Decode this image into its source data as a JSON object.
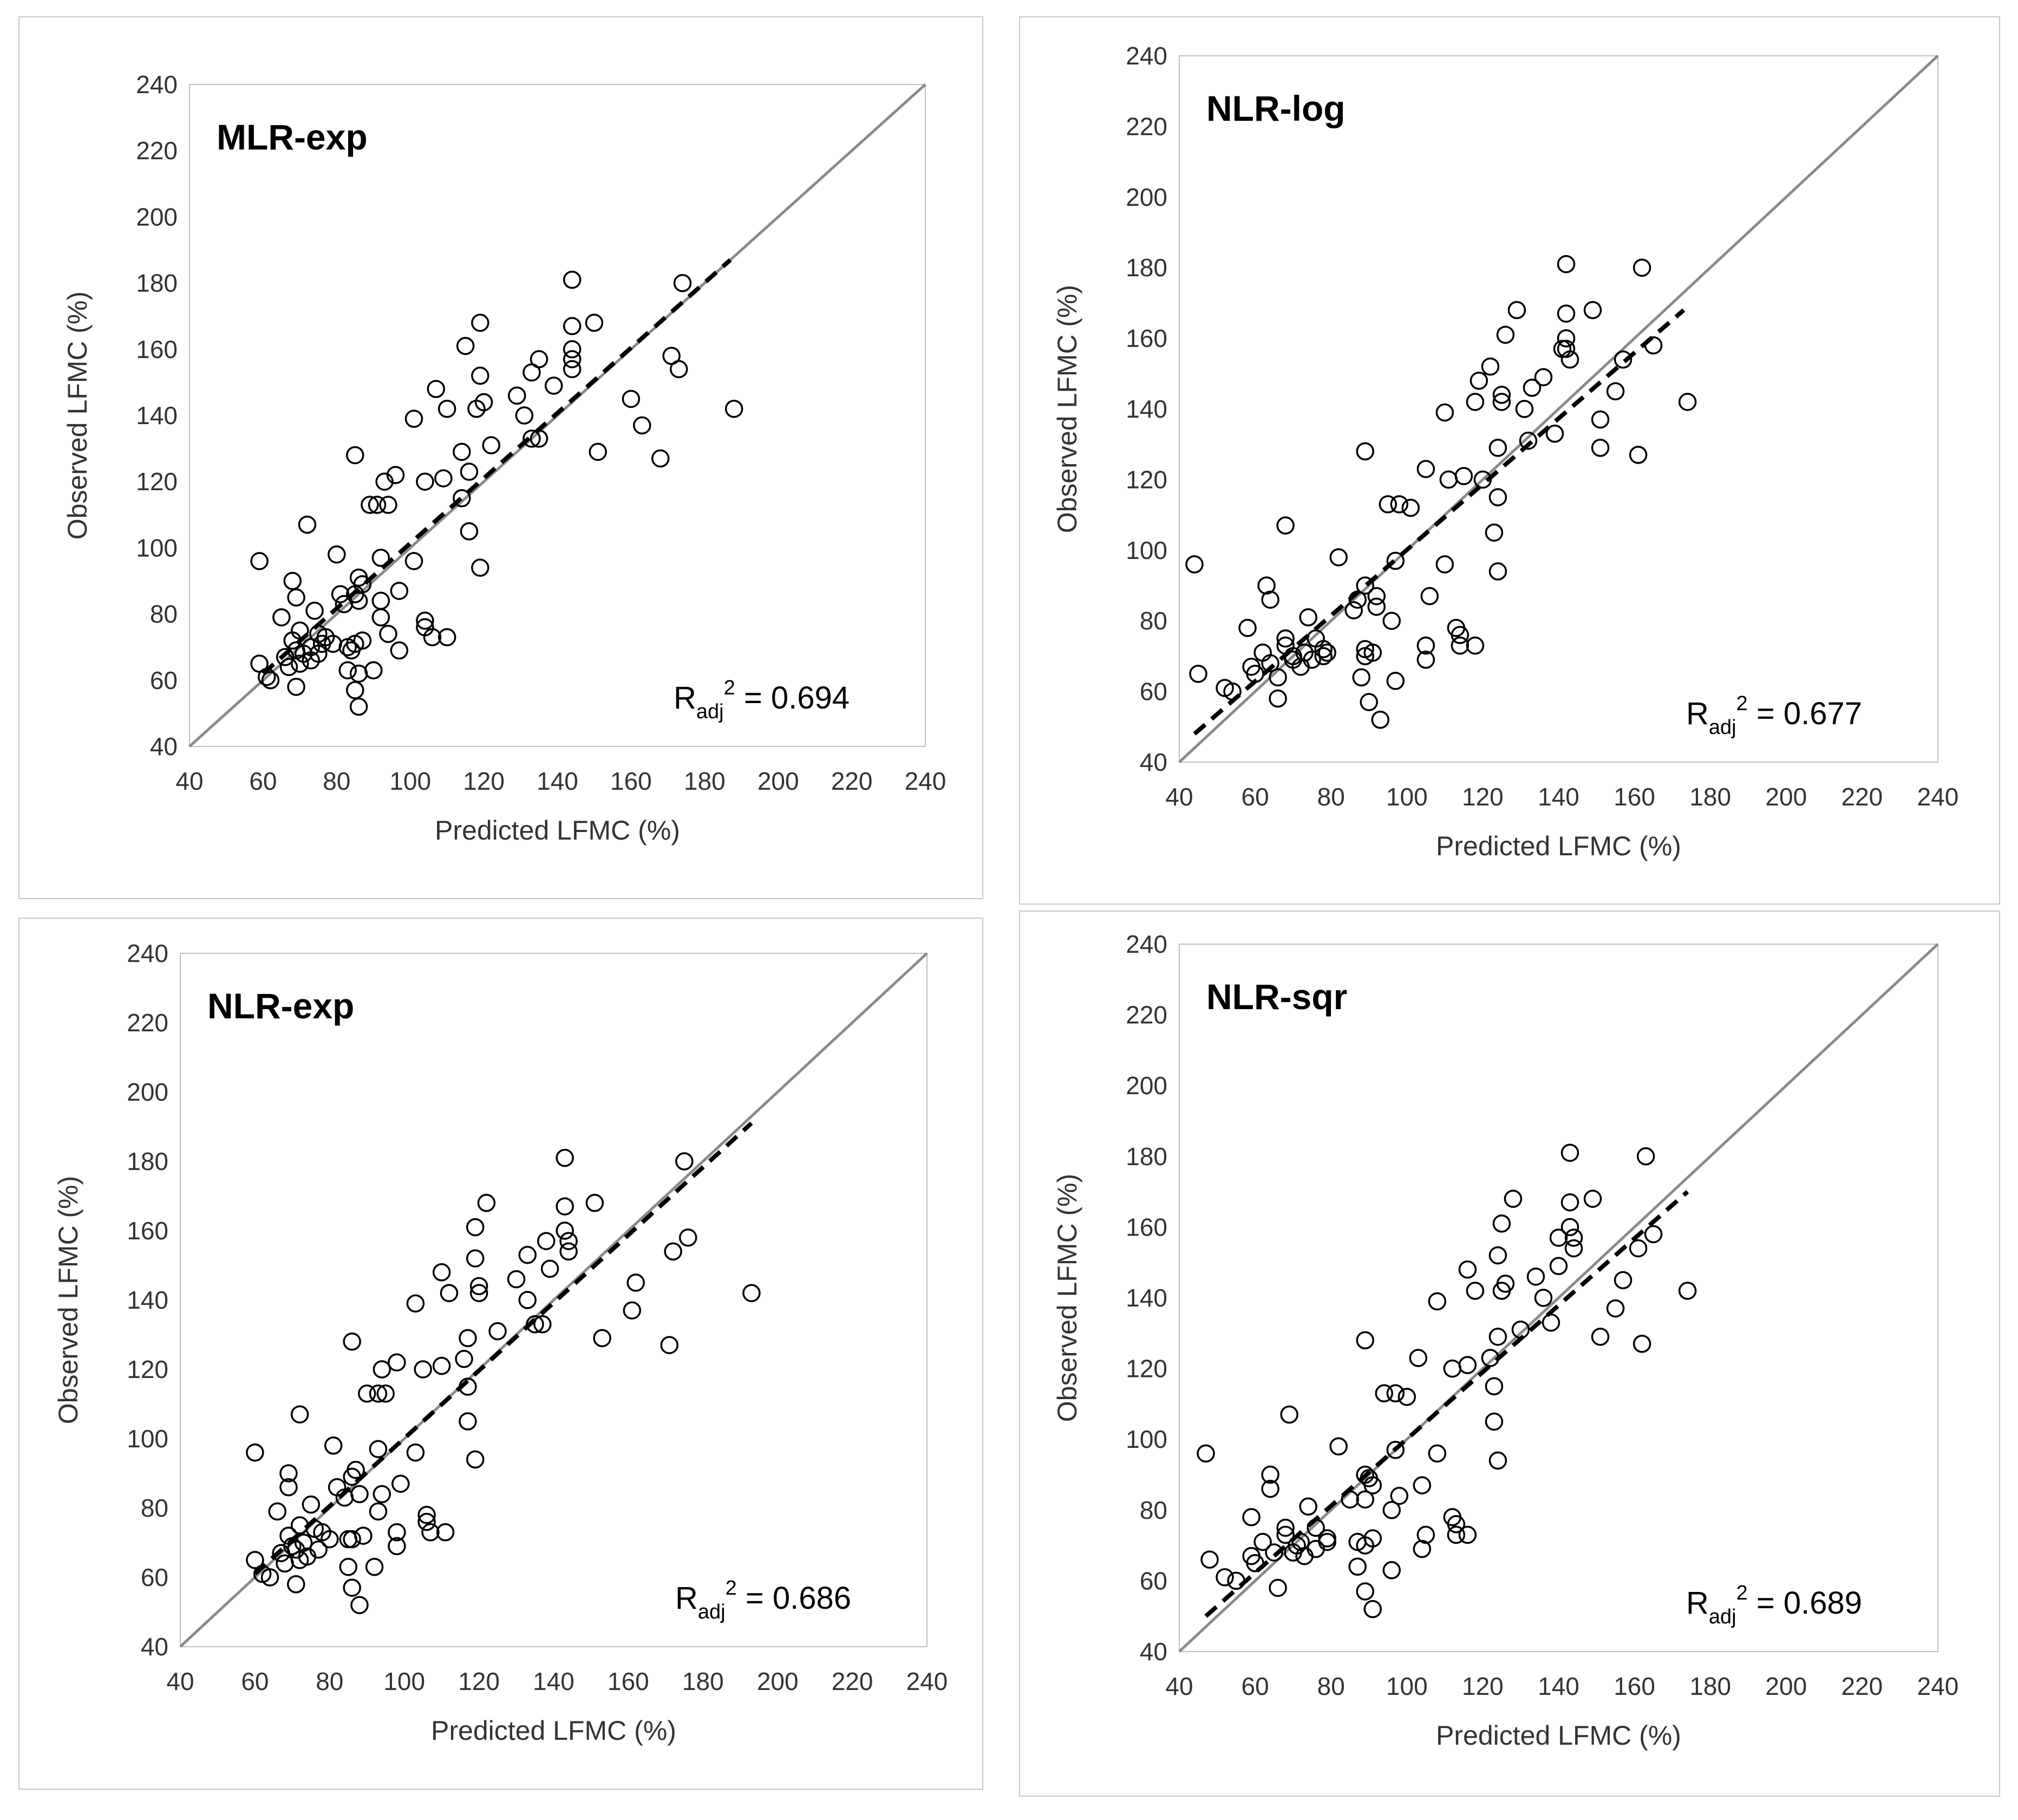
{
  "axes": {
    "xlabel": "Predicted LFMC (%)",
    "ylabel": "Observed LFMC (%)",
    "ticks": [
      "40",
      "60",
      "80",
      "100",
      "120",
      "140",
      "160",
      "180",
      "200",
      "220",
      "240"
    ],
    "r2_prefix": "R",
    "r2_sub": "adj",
    "r2_sup": "2"
  },
  "colors": {
    "one_to_one": "#8a8a8a",
    "trend": "#000000",
    "marker": "#000000",
    "frame": "#c8c8c8"
  },
  "chart_data": [
    {
      "type": "scatter",
      "title": "MLR-exp",
      "r2": "= 0.694",
      "xlabel": "Predicted LFMC (%)",
      "ylabel": "Observed LFMC (%)",
      "xlim": [
        40,
        240
      ],
      "ylim": [
        40,
        240
      ],
      "trend": [
        [
          60,
          62
        ],
        [
          187,
          187
        ]
      ],
      "points": [
        [
          144,
          181
        ],
        [
          174,
          180
        ],
        [
          119,
          168
        ],
        [
          150,
          168
        ],
        [
          144,
          167
        ],
        [
          115,
          161
        ],
        [
          144,
          160
        ],
        [
          144,
          157
        ],
        [
          144,
          154
        ],
        [
          171,
          158
        ],
        [
          135,
          157
        ],
        [
          133,
          153
        ],
        [
          119,
          152
        ],
        [
          173,
          154
        ],
        [
          107,
          148
        ],
        [
          139,
          149
        ],
        [
          129,
          146
        ],
        [
          160,
          145
        ],
        [
          120,
          144
        ],
        [
          118,
          142
        ],
        [
          110,
          142
        ],
        [
          101,
          139
        ],
        [
          131,
          140
        ],
        [
          163,
          137
        ],
        [
          188,
          142
        ],
        [
          122,
          131
        ],
        [
          114,
          129
        ],
        [
          135,
          133
        ],
        [
          133,
          133
        ],
        [
          151,
          129
        ],
        [
          168,
          127
        ],
        [
          85,
          128
        ],
        [
          116,
          123
        ],
        [
          96,
          122
        ],
        [
          109,
          121
        ],
        [
          104,
          120
        ],
        [
          93,
          120
        ],
        [
          89,
          113
        ],
        [
          91,
          113
        ],
        [
          94,
          113
        ],
        [
          114,
          115
        ],
        [
          72,
          107
        ],
        [
          116,
          105
        ],
        [
          80,
          98
        ],
        [
          92,
          97
        ],
        [
          101,
          96
        ],
        [
          119,
          94
        ],
        [
          59,
          96
        ],
        [
          68,
          90
        ],
        [
          86,
          91
        ],
        [
          87,
          89
        ],
        [
          97,
          87
        ],
        [
          85,
          86
        ],
        [
          81,
          86
        ],
        [
          69,
          85
        ],
        [
          92,
          84
        ],
        [
          86,
          84
        ],
        [
          82,
          83
        ],
        [
          74,
          81
        ],
        [
          92,
          79
        ],
        [
          65,
          79
        ],
        [
          104,
          78
        ],
        [
          104,
          76
        ],
        [
          70,
          75
        ],
        [
          75,
          74
        ],
        [
          94,
          74
        ],
        [
          106,
          73
        ],
        [
          110,
          73
        ],
        [
          68,
          72
        ],
        [
          77,
          73
        ],
        [
          87,
          72
        ],
        [
          85,
          71
        ],
        [
          79,
          71
        ],
        [
          73,
          70
        ],
        [
          83,
          70
        ],
        [
          69,
          69
        ],
        [
          84,
          69
        ],
        [
          75,
          68
        ],
        [
          71,
          68
        ],
        [
          66,
          67
        ],
        [
          73,
          66
        ],
        [
          70,
          65
        ],
        [
          67,
          64
        ],
        [
          83,
          63
        ],
        [
          86,
          62
        ],
        [
          61,
          61
        ],
        [
          90,
          63
        ],
        [
          59,
          65
        ],
        [
          69,
          58
        ],
        [
          85,
          57
        ],
        [
          86,
          52
        ],
        [
          68,
          72
        ],
        [
          76,
          71
        ],
        [
          97,
          69
        ],
        [
          62,
          60
        ]
      ]
    },
    {
      "type": "scatter",
      "title": "NLR-log",
      "r2": "= 0.677",
      "xlabel": "Predicted LFMC (%)",
      "ylabel": "Observed LFMC (%)",
      "xlim": [
        40,
        240
      ],
      "ylim": [
        40,
        240
      ],
      "trend": [
        [
          44,
          48
        ],
        [
          173,
          168
        ]
      ],
      "points": [
        [
          142,
          181
        ],
        [
          162,
          180
        ],
        [
          129,
          168
        ],
        [
          149,
          168
        ],
        [
          142,
          167
        ],
        [
          126,
          161
        ],
        [
          142,
          160
        ],
        [
          142,
          157
        ],
        [
          143,
          154
        ],
        [
          165,
          158
        ],
        [
          141,
          157
        ],
        [
          122,
          152
        ],
        [
          157,
          154
        ],
        [
          119,
          148
        ],
        [
          136,
          149
        ],
        [
          133,
          146
        ],
        [
          155,
          145
        ],
        [
          125,
          144
        ],
        [
          125,
          142
        ],
        [
          118,
          142
        ],
        [
          110,
          139
        ],
        [
          131,
          140
        ],
        [
          151,
          137
        ],
        [
          174,
          142
        ],
        [
          124,
          129
        ],
        [
          139,
          133
        ],
        [
          132,
          131
        ],
        [
          151,
          129
        ],
        [
          161,
          127
        ],
        [
          89,
          128
        ],
        [
          105,
          123
        ],
        [
          115,
          121
        ],
        [
          120,
          120
        ],
        [
          111,
          120
        ],
        [
          95,
          113
        ],
        [
          98,
          113
        ],
        [
          101,
          112
        ],
        [
          124,
          115
        ],
        [
          68,
          107
        ],
        [
          123,
          105
        ],
        [
          82,
          98
        ],
        [
          97,
          97
        ],
        [
          110,
          96
        ],
        [
          124,
          94
        ],
        [
          44,
          96
        ],
        [
          63,
          90
        ],
        [
          89,
          90
        ],
        [
          92,
          87
        ],
        [
          106,
          87
        ],
        [
          87,
          86
        ],
        [
          64,
          86
        ],
        [
          92,
          84
        ],
        [
          86,
          83
        ],
        [
          74,
          81
        ],
        [
          96,
          80
        ],
        [
          58,
          78
        ],
        [
          113,
          78
        ],
        [
          114,
          76
        ],
        [
          68,
          75
        ],
        [
          76,
          75
        ],
        [
          114,
          73
        ],
        [
          105,
          73
        ],
        [
          118,
          73
        ],
        [
          89,
          72
        ],
        [
          78,
          72
        ],
        [
          68,
          73
        ],
        [
          73,
          71
        ],
        [
          79,
          71
        ],
        [
          62,
          71
        ],
        [
          70,
          70
        ],
        [
          78,
          70
        ],
        [
          91,
          71
        ],
        [
          89,
          70
        ],
        [
          75,
          69
        ],
        [
          70,
          69
        ],
        [
          59,
          67
        ],
        [
          105,
          69
        ],
        [
          64,
          68
        ],
        [
          72,
          67
        ],
        [
          88,
          64
        ],
        [
          97,
          63
        ],
        [
          60,
          65
        ],
        [
          66,
          64
        ],
        [
          45,
          65
        ],
        [
          52,
          61
        ],
        [
          54,
          60
        ],
        [
          66,
          58
        ],
        [
          90,
          57
        ],
        [
          93,
          52
        ]
      ]
    },
    {
      "type": "scatter",
      "title": "NLR-exp",
      "r2": "= 0.686",
      "xlabel": "Predicted LFMC (%)",
      "ylabel": "Observed LFMC (%)",
      "xlim": [
        40,
        240
      ],
      "ylim": [
        40,
        240
      ],
      "trend": [
        [
          60,
          61
        ],
        [
          193,
          191
        ]
      ],
      "points": [
        [
          143,
          181
        ],
        [
          175,
          180
        ],
        [
          122,
          168
        ],
        [
          151,
          168
        ],
        [
          143,
          167
        ],
        [
          119,
          161
        ],
        [
          143,
          160
        ],
        [
          144,
          157
        ],
        [
          144,
          154
        ],
        [
          176,
          158
        ],
        [
          138,
          157
        ],
        [
          133,
          153
        ],
        [
          119,
          152
        ],
        [
          172,
          154
        ],
        [
          110,
          148
        ],
        [
          139,
          149
        ],
        [
          130,
          146
        ],
        [
          162,
          145
        ],
        [
          120,
          144
        ],
        [
          120,
          142
        ],
        [
          112,
          142
        ],
        [
          103,
          139
        ],
        [
          133,
          140
        ],
        [
          161,
          137
        ],
        [
          193,
          142
        ],
        [
          125,
          131
        ],
        [
          117,
          129
        ],
        [
          137,
          133
        ],
        [
          135,
          133
        ],
        [
          153,
          129
        ],
        [
          171,
          127
        ],
        [
          86,
          128
        ],
        [
          116,
          123
        ],
        [
          98,
          122
        ],
        [
          110,
          121
        ],
        [
          105,
          120
        ],
        [
          94,
          120
        ],
        [
          90,
          113
        ],
        [
          93,
          113
        ],
        [
          95,
          113
        ],
        [
          117,
          115
        ],
        [
          72,
          107
        ],
        [
          117,
          105
        ],
        [
          81,
          98
        ],
        [
          93,
          97
        ],
        [
          103,
          96
        ],
        [
          119,
          94
        ],
        [
          60,
          96
        ],
        [
          69,
          90
        ],
        [
          87,
          91
        ],
        [
          86,
          89
        ],
        [
          99,
          87
        ],
        [
          82,
          86
        ],
        [
          69,
          86
        ],
        [
          94,
          84
        ],
        [
          88,
          84
        ],
        [
          84,
          83
        ],
        [
          75,
          81
        ],
        [
          93,
          79
        ],
        [
          66,
          79
        ],
        [
          106,
          78
        ],
        [
          106,
          76
        ],
        [
          72,
          75
        ],
        [
          76,
          74
        ],
        [
          107,
          73
        ],
        [
          111,
          73
        ],
        [
          98,
          73
        ],
        [
          69,
          72
        ],
        [
          78,
          73
        ],
        [
          89,
          72
        ],
        [
          85,
          71
        ],
        [
          80,
          71
        ],
        [
          73,
          70
        ],
        [
          86,
          71
        ],
        [
          70,
          69
        ],
        [
          98,
          69
        ],
        [
          77,
          68
        ],
        [
          71,
          68
        ],
        [
          67,
          67
        ],
        [
          74,
          66
        ],
        [
          72,
          65
        ],
        [
          68,
          64
        ],
        [
          85,
          63
        ],
        [
          92,
          63
        ],
        [
          62,
          61
        ],
        [
          64,
          60
        ],
        [
          60,
          65
        ],
        [
          71,
          58
        ],
        [
          86,
          57
        ],
        [
          88,
          52
        ]
      ]
    },
    {
      "type": "scatter",
      "title": "NLR-sqr",
      "r2": "= 0.689",
      "xlabel": "Predicted LFMC (%)",
      "ylabel": "Observed LFMC (%)",
      "xlim": [
        40,
        240
      ],
      "ylim": [
        40,
        240
      ],
      "trend": [
        [
          47,
          50
        ],
        [
          174,
          170
        ]
      ],
      "points": [
        [
          143,
          181
        ],
        [
          163,
          180
        ],
        [
          128,
          168
        ],
        [
          149,
          168
        ],
        [
          143,
          167
        ],
        [
          125,
          161
        ],
        [
          143,
          160
        ],
        [
          144,
          157
        ],
        [
          144,
          154
        ],
        [
          165,
          158
        ],
        [
          140,
          157
        ],
        [
          124,
          152
        ],
        [
          161,
          154
        ],
        [
          116,
          148
        ],
        [
          140,
          149
        ],
        [
          134,
          146
        ],
        [
          157,
          145
        ],
        [
          126,
          144
        ],
        [
          125,
          142
        ],
        [
          118,
          142
        ],
        [
          108,
          139
        ],
        [
          136,
          140
        ],
        [
          155,
          137
        ],
        [
          174,
          142
        ],
        [
          124,
          129
        ],
        [
          138,
          133
        ],
        [
          130,
          131
        ],
        [
          151,
          129
        ],
        [
          162,
          127
        ],
        [
          89,
          128
        ],
        [
          103,
          123
        ],
        [
          116,
          121
        ],
        [
          122,
          123
        ],
        [
          112,
          120
        ],
        [
          94,
          113
        ],
        [
          97,
          113
        ],
        [
          100,
          112
        ],
        [
          123,
          115
        ],
        [
          69,
          107
        ],
        [
          123,
          105
        ],
        [
          82,
          98
        ],
        [
          97,
          97
        ],
        [
          108,
          96
        ],
        [
          124,
          94
        ],
        [
          47,
          96
        ],
        [
          64,
          90
        ],
        [
          89,
          90
        ],
        [
          91,
          87
        ],
        [
          104,
          87
        ],
        [
          90,
          89
        ],
        [
          64,
          86
        ],
        [
          98,
          84
        ],
        [
          89,
          83
        ],
        [
          85,
          83
        ],
        [
          74,
          81
        ],
        [
          96,
          80
        ],
        [
          59,
          78
        ],
        [
          112,
          78
        ],
        [
          113,
          76
        ],
        [
          68,
          75
        ],
        [
          76,
          75
        ],
        [
          113,
          73
        ],
        [
          105,
          73
        ],
        [
          116,
          73
        ],
        [
          91,
          72
        ],
        [
          79,
          72
        ],
        [
          68,
          73
        ],
        [
          72,
          71
        ],
        [
          79,
          71
        ],
        [
          62,
          71
        ],
        [
          71,
          70
        ],
        [
          87,
          71
        ],
        [
          89,
          70
        ],
        [
          76,
          69
        ],
        [
          70,
          68
        ],
        [
          59,
          67
        ],
        [
          104,
          69
        ],
        [
          65,
          68
        ],
        [
          73,
          67
        ],
        [
          87,
          64
        ],
        [
          96,
          63
        ],
        [
          60,
          65
        ],
        [
          48,
          66
        ],
        [
          52,
          61
        ],
        [
          55,
          60
        ],
        [
          66,
          58
        ],
        [
          89,
          57
        ],
        [
          91,
          52
        ]
      ]
    }
  ]
}
